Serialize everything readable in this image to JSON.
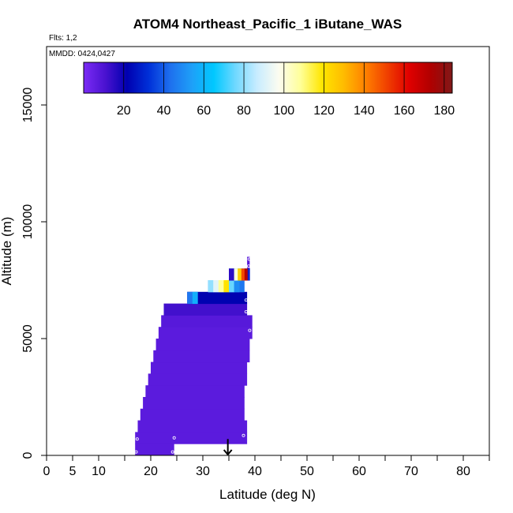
{
  "chart_data": {
    "type": "heatmap",
    "title": "ATOM4 Northeast_Pacific_1 iButane_WAS",
    "flights_note": "Flts: 1,2",
    "mmdd_note": "MMDD: 0424,0427",
    "xlabel": "Latitude (deg N)",
    "ylabel": "Altitude (m)",
    "xlim": [
      0,
      85
    ],
    "ylim": [
      0,
      17500
    ],
    "x_major_ticks": [
      0,
      5,
      10,
      20,
      30,
      40,
      50,
      60,
      70,
      80
    ],
    "x_minor_ticks": [
      15,
      25,
      35,
      45,
      55,
      65,
      75,
      85
    ],
    "y_ticks": [
      0,
      5000,
      10000,
      15000
    ],
    "colorbar": {
      "min": 0,
      "max": 184,
      "ticks": [
        20,
        40,
        60,
        80,
        100,
        120,
        140,
        160,
        180
      ],
      "colors": [
        "#7b2bf5",
        "#4a12d0",
        "#0000b0",
        "#0030d8",
        "#1e70ee",
        "#1ea0f8",
        "#00c8ff",
        "#6fd8ff",
        "#c8ecff",
        "#fcfcf0",
        "#ffff99",
        "#ffe600",
        "#ffbb00",
        "#ff8000",
        "#f04000",
        "#e00000",
        "#b00000",
        "#801818"
      ]
    },
    "bands": [
      {
        "alt": [
          0,
          500
        ],
        "lat": [
          17.0,
          24.5
        ],
        "value": 7
      },
      {
        "alt": [
          500,
          1000
        ],
        "lat": [
          17.0,
          38.5
        ],
        "value": 7
      },
      {
        "alt": [
          1000,
          1500
        ],
        "lat": [
          17.5,
          38.5
        ],
        "value": 7
      },
      {
        "alt": [
          1500,
          2000
        ],
        "lat": [
          18.0,
          38.0
        ],
        "value": 7
      },
      {
        "alt": [
          2000,
          2500
        ],
        "lat": [
          18.5,
          38.0
        ],
        "value": 7
      },
      {
        "alt": [
          2500,
          3000
        ],
        "lat": [
          19.0,
          38.0
        ],
        "value": 7
      },
      {
        "alt": [
          3000,
          3500
        ],
        "lat": [
          19.5,
          38.5
        ],
        "value": 7
      },
      {
        "alt": [
          3500,
          4000
        ],
        "lat": [
          20.0,
          38.5
        ],
        "value": 7
      },
      {
        "alt": [
          4000,
          4500
        ],
        "lat": [
          20.5,
          39.0
        ],
        "value": 7
      },
      {
        "alt": [
          4500,
          5000
        ],
        "lat": [
          21.0,
          39.0
        ],
        "value": 7
      },
      {
        "alt": [
          5000,
          5500
        ],
        "lat": [
          21.5,
          39.5
        ],
        "value": 7
      },
      {
        "alt": [
          5500,
          6000
        ],
        "lat": [
          22.0,
          39.5
        ],
        "value": 8
      },
      {
        "alt": [
          6000,
          6500
        ],
        "lat": [
          22.5,
          38.5
        ],
        "value": 12
      },
      {
        "alt": [
          6500,
          7000
        ],
        "lat": [
          27.0,
          38.5
        ],
        "value": 22
      },
      {
        "alt": [
          7000,
          7500
        ],
        "lat": [
          31.0,
          38.0
        ],
        "value": 45
      },
      {
        "alt": [
          7500,
          8000
        ],
        "lat": [
          35.0,
          39.0
        ],
        "value": 60
      },
      {
        "alt": [
          8000,
          8500
        ],
        "lat": [
          38.5,
          39.0
        ],
        "value": 8
      }
    ],
    "high_cells": [
      {
        "alt": [
          6500,
          7000
        ],
        "lat": [
          27.0,
          28.0
        ],
        "value": 45
      },
      {
        "alt": [
          6500,
          7000
        ],
        "lat": [
          28.0,
          29.0
        ],
        "value": 58
      },
      {
        "alt": [
          7000,
          7500
        ],
        "lat": [
          31.0,
          32.0
        ],
        "value": 80
      },
      {
        "alt": [
          7000,
          7500
        ],
        "lat": [
          32.0,
          33.0
        ],
        "value": 92
      },
      {
        "alt": [
          7000,
          7500
        ],
        "lat": [
          33.0,
          34.0
        ],
        "value": 108
      },
      {
        "alt": [
          7000,
          7500
        ],
        "lat": [
          34.0,
          35.0
        ],
        "value": 120
      },
      {
        "alt": [
          7000,
          7500
        ],
        "lat": [
          35.0,
          36.0
        ],
        "value": 75
      },
      {
        "alt": [
          7000,
          7500
        ],
        "lat": [
          36.0,
          37.0
        ],
        "value": 50
      },
      {
        "alt": [
          7500,
          8000
        ],
        "lat": [
          35.0,
          36.0
        ],
        "value": 15
      },
      {
        "alt": [
          7500,
          8000
        ],
        "lat": [
          36.0,
          36.7
        ],
        "value": 100
      },
      {
        "alt": [
          7500,
          8000
        ],
        "lat": [
          36.7,
          37.4
        ],
        "value": 125
      },
      {
        "alt": [
          7500,
          8000
        ],
        "lat": [
          37.4,
          38.0
        ],
        "value": 150
      },
      {
        "alt": [
          7500,
          8000
        ],
        "lat": [
          38.0,
          38.6
        ],
        "value": 172
      },
      {
        "alt": [
          7500,
          8000
        ],
        "lat": [
          38.6,
          39.0
        ],
        "value": 30
      }
    ],
    "sample_points": [
      {
        "lat": 17.2,
        "alt": 150
      },
      {
        "lat": 17.4,
        "alt": 700
      },
      {
        "lat": 24.2,
        "alt": 150
      },
      {
        "lat": 24.5,
        "alt": 750
      },
      {
        "lat": 37.8,
        "alt": 850
      },
      {
        "lat": 39.0,
        "alt": 5350
      },
      {
        "lat": 38.3,
        "alt": 6150
      },
      {
        "lat": 38.3,
        "alt": 6650
      },
      {
        "lat": 38.6,
        "alt": 7400
      },
      {
        "lat": 38.8,
        "alt": 8100
      },
      {
        "lat": 38.9,
        "alt": 8400
      }
    ],
    "arrow_marker": {
      "lat": 34.8,
      "alt_from": 700,
      "alt_to": 0
    }
  }
}
